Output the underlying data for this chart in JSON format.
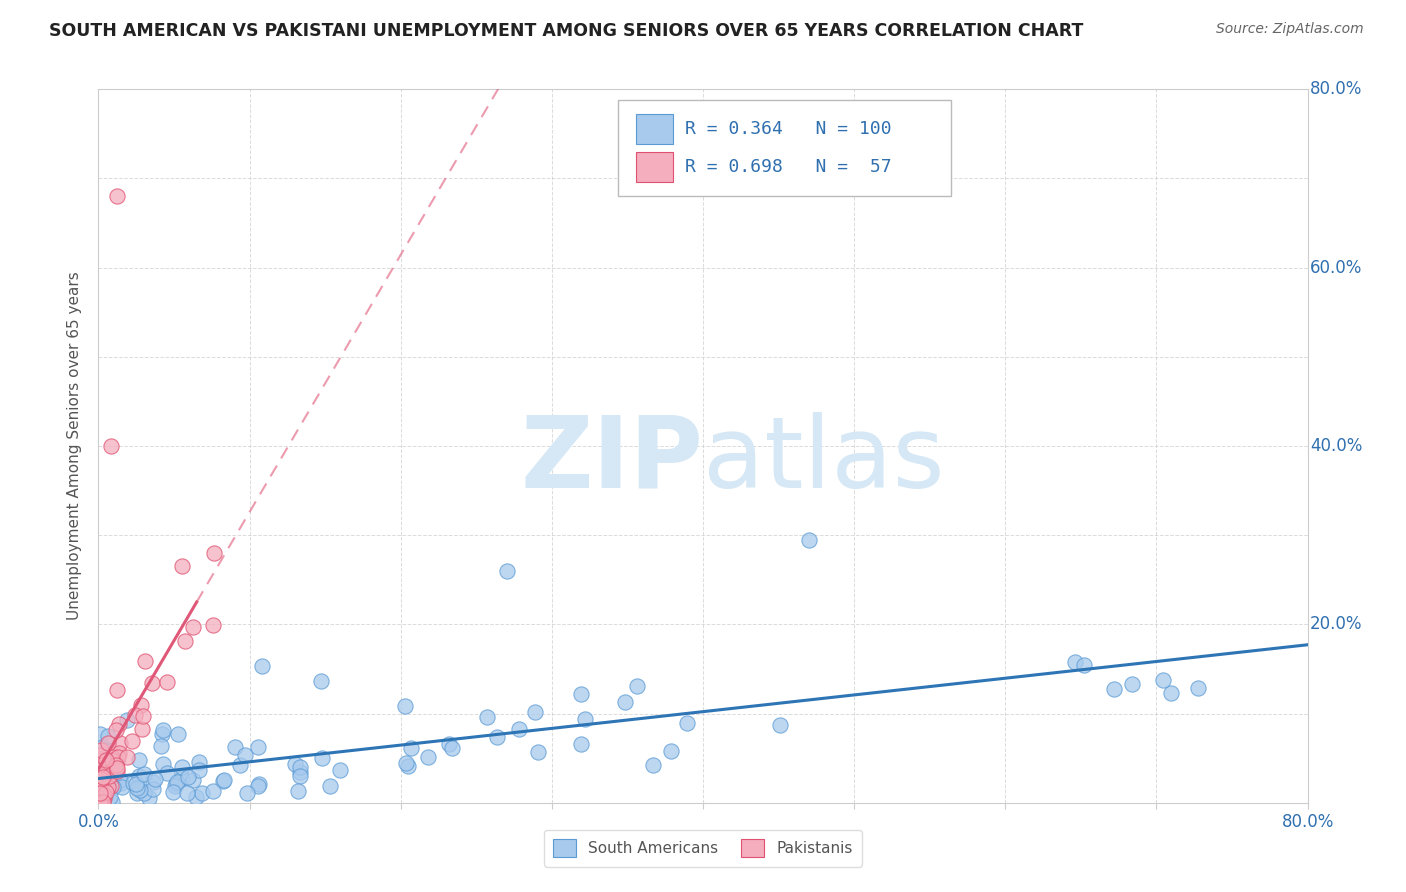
{
  "title": "SOUTH AMERICAN VS PAKISTANI UNEMPLOYMENT AMONG SENIORS OVER 65 YEARS CORRELATION CHART",
  "source": "Source: ZipAtlas.com",
  "ylabel": "Unemployment Among Seniors over 65 years",
  "xlim": [
    0,
    0.8
  ],
  "ylim": [
    0,
    0.8
  ],
  "xtick_positions": [
    0.0,
    0.1,
    0.2,
    0.3,
    0.4,
    0.5,
    0.6,
    0.7,
    0.8
  ],
  "xticklabels": [
    "0.0%",
    "",
    "",
    "",
    "",
    "",
    "",
    "",
    "80.0%"
  ],
  "ytick_positions": [
    0.0,
    0.1,
    0.2,
    0.3,
    0.4,
    0.5,
    0.6,
    0.7,
    0.8
  ],
  "yticklabels_right": [
    "",
    "",
    "20.0%",
    "",
    "40.0%",
    "",
    "60.0%",
    "",
    "80.0%"
  ],
  "R_blue": 0.364,
  "N_blue": 100,
  "R_pink": 0.698,
  "N_pink": 57,
  "blue_fill": "#A8CAED",
  "blue_edge": "#5B9BD5",
  "pink_fill": "#F4AEBE",
  "pink_edge": "#E05070",
  "blue_line_color": "#2E75B6",
  "pink_line_color": "#E05878",
  "watermark_zip": "ZIP",
  "watermark_atlas": "atlas",
  "watermark_color": "#D6E8F5",
  "grid_color": "#CCCCCC",
  "background_color": "#FFFFFF",
  "title_color": "#222222",
  "source_color": "#666666",
  "ylabel_color": "#555555",
  "xtick_color": "#3070B0",
  "ytick_color": "#3070B0",
  "legend_text_color": "#3070B0",
  "seed": 12345
}
